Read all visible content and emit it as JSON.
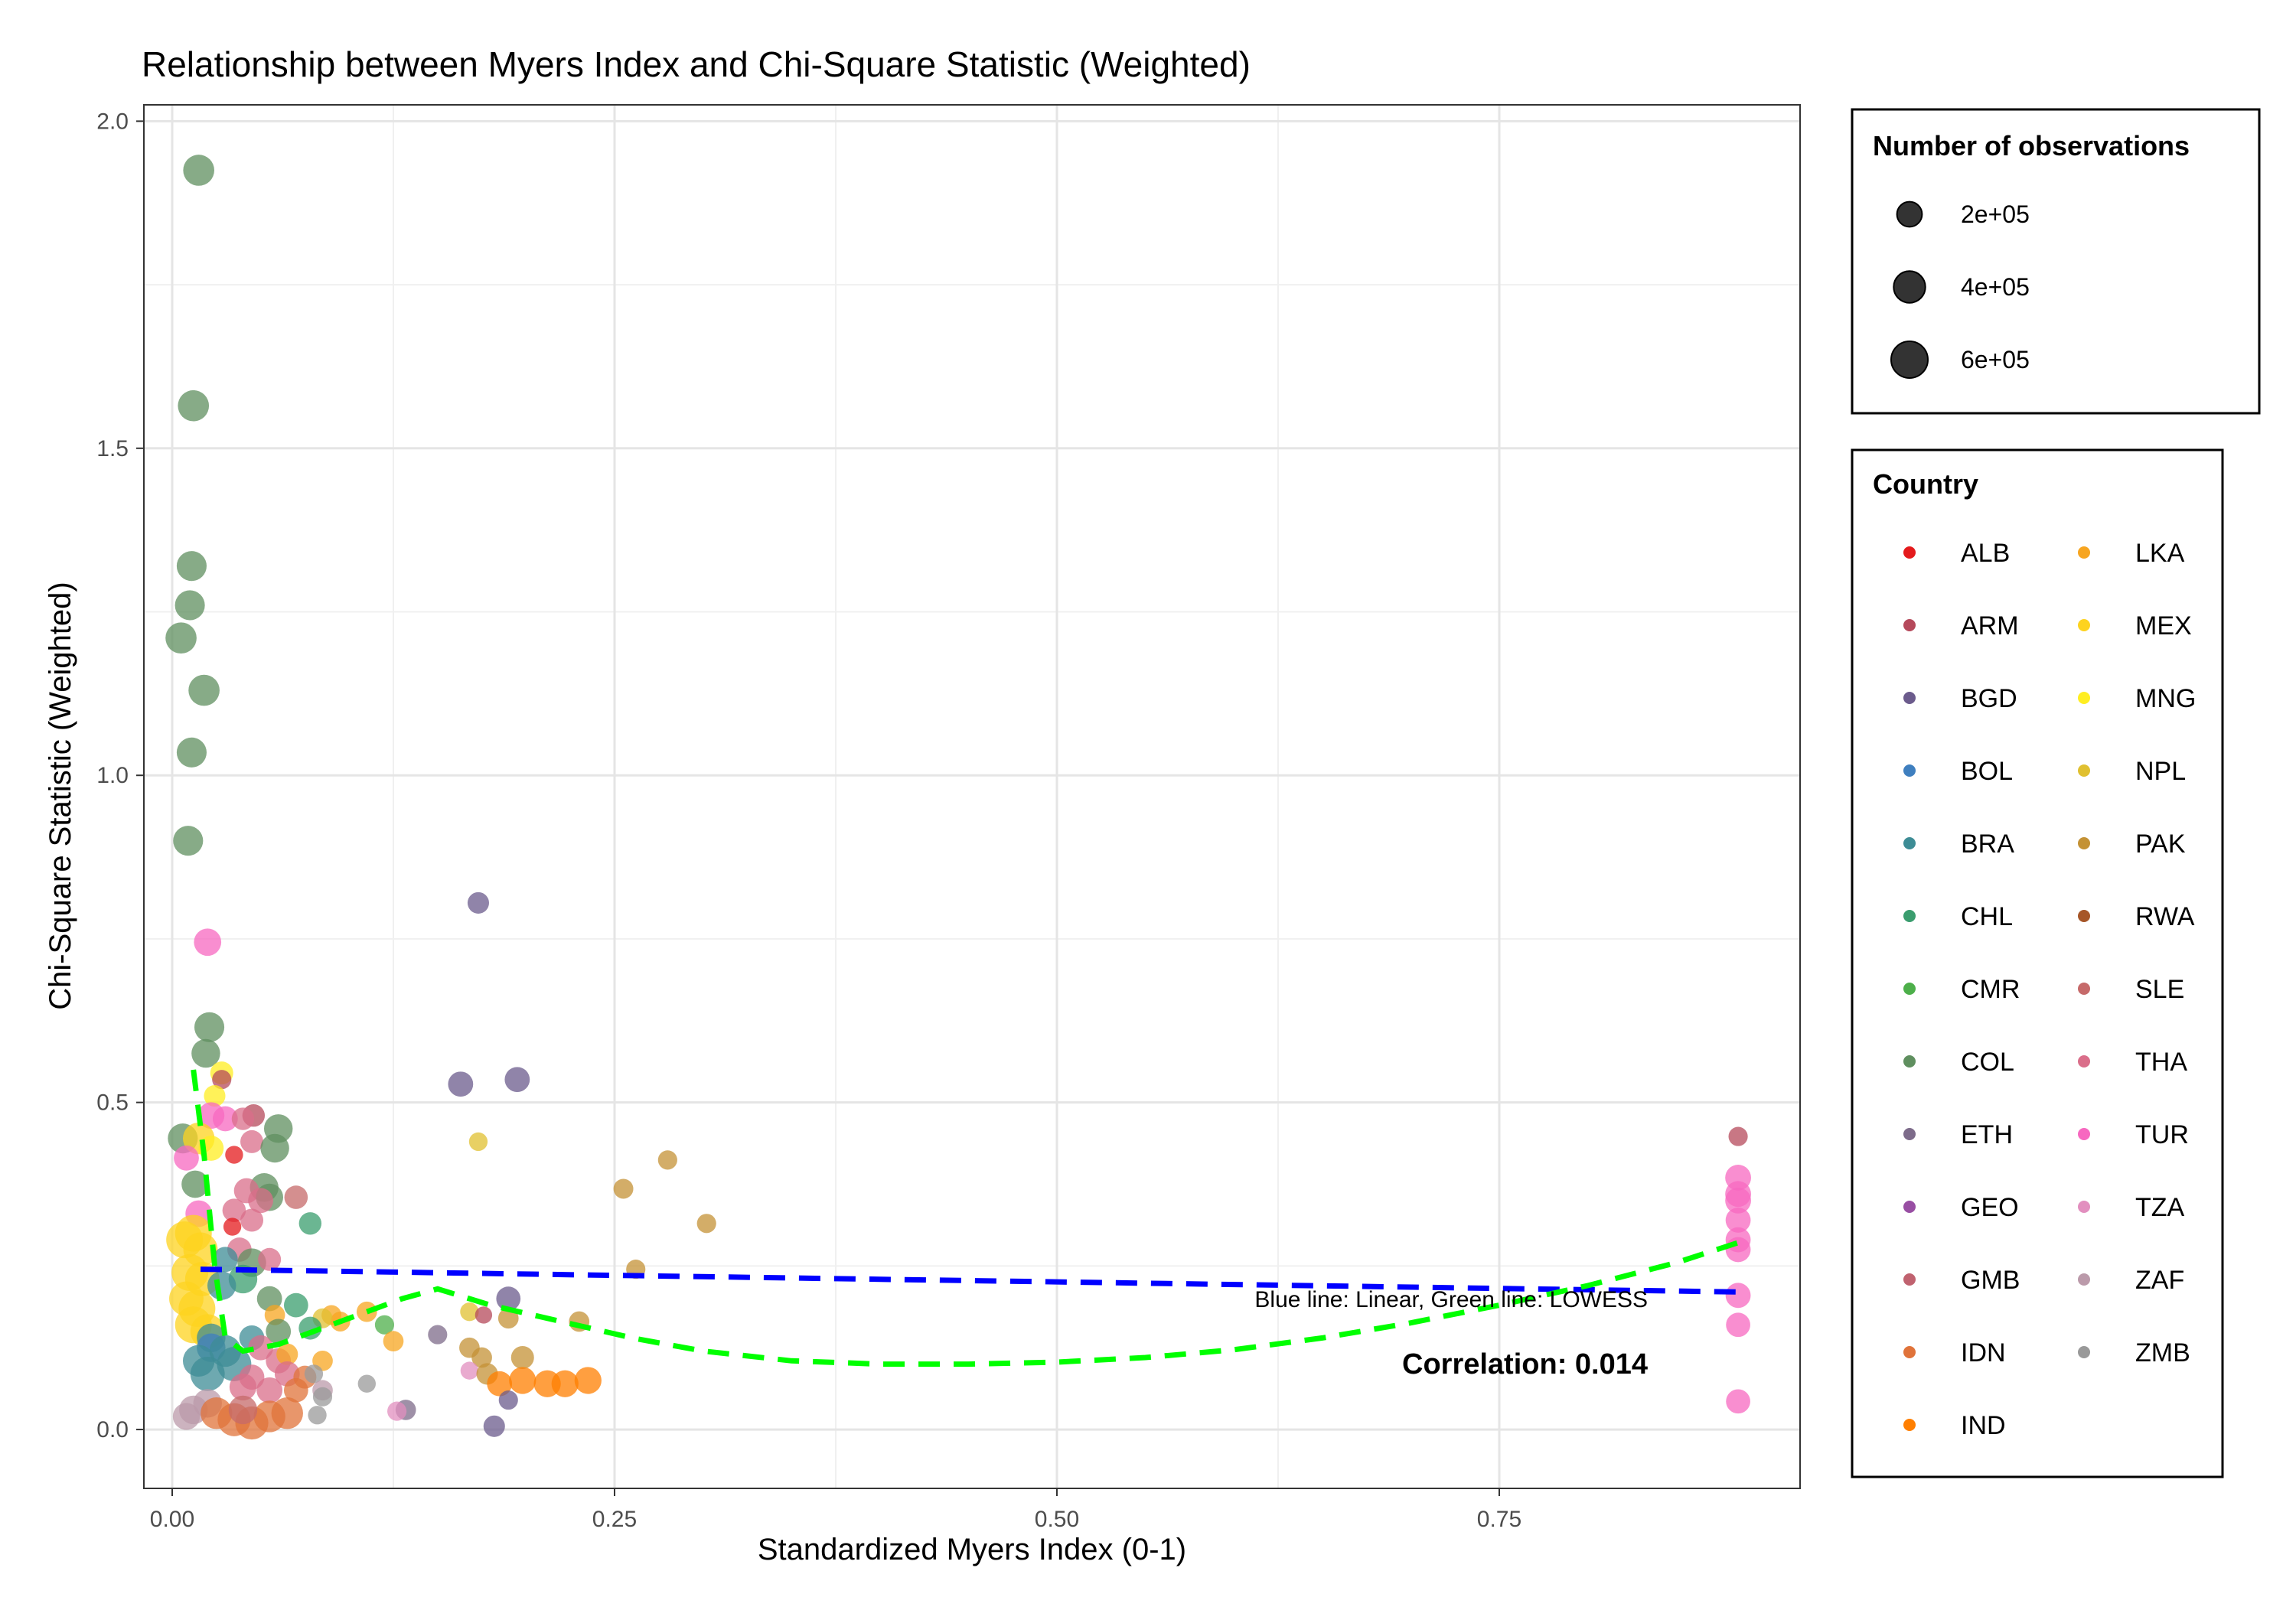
{
  "chart_data": {
    "type": "scatter",
    "title": "Relationship between Myers Index and Chi-Square Statistic (Weighted)",
    "xlabel": "Standardized Myers Index (0-1)",
    "ylabel": "Chi-Square Statistic (Weighted)",
    "xlim": [
      -0.016,
      0.92
    ],
    "ylim": [
      -0.09,
      2.025
    ],
    "x_ticks": [
      0.0,
      0.25,
      0.5,
      0.75
    ],
    "x_tick_labels": [
      "0.00",
      "0.25",
      "0.50",
      "0.75"
    ],
    "y_ticks": [
      0.0,
      0.5,
      1.0,
      1.5,
      2.0
    ],
    "y_tick_labels": [
      "0.0",
      "0.5",
      "1.0",
      "1.5",
      "2.0"
    ],
    "grid": true,
    "size_legend": {
      "title": "Number of observations",
      "entries": [
        {
          "label": "2e+05",
          "value": 200000
        },
        {
          "label": "4e+05",
          "value": 400000
        },
        {
          "label": "6e+05",
          "value": 600000
        }
      ]
    },
    "color_legend": {
      "title": "Country",
      "placement": "right",
      "entries": [
        {
          "code": "ALB",
          "color": "#e41a1c"
        },
        {
          "code": "ARM",
          "color": "#b5495b"
        },
        {
          "code": "BGD",
          "color": "#6b5b8c"
        },
        {
          "code": "BOL",
          "color": "#3f7fbf"
        },
        {
          "code": "BRA",
          "color": "#3d8c95"
        },
        {
          "code": "CHL",
          "color": "#3a9d6e"
        },
        {
          "code": "CMR",
          "color": "#4daf4a"
        },
        {
          "code": "COL",
          "color": "#5f8f5f"
        },
        {
          "code": "ETH",
          "color": "#7d6b8a"
        },
        {
          "code": "GEO",
          "color": "#984ea3"
        },
        {
          "code": "GMB",
          "color": "#c0626f"
        },
        {
          "code": "IDN",
          "color": "#e0733a"
        },
        {
          "code": "IND",
          "color": "#ff7f00"
        },
        {
          "code": "LKA",
          "color": "#f7a520"
        },
        {
          "code": "MEX",
          "color": "#fdd31f"
        },
        {
          "code": "MNG",
          "color": "#ffee22"
        },
        {
          "code": "NPL",
          "color": "#e0c030"
        },
        {
          "code": "PAK",
          "color": "#c49235"
        },
        {
          "code": "RWA",
          "color": "#a65628"
        },
        {
          "code": "SLE",
          "color": "#c66a6a"
        },
        {
          "code": "THA",
          "color": "#da6e8a"
        },
        {
          "code": "TUR",
          "color": "#f768c0"
        },
        {
          "code": "TZA",
          "color": "#e28fbf"
        },
        {
          "code": "ZAF",
          "color": "#bb9aaa"
        },
        {
          "code": "ZMB",
          "color": "#999999"
        }
      ]
    },
    "lines": [
      {
        "name": "Linear",
        "color": "#0000ff",
        "style": "dashed",
        "x": [
          0.016,
          0.89
        ],
        "y": [
          0.245,
          0.21
        ]
      },
      {
        "name": "LOWESS",
        "color": "#00ff00",
        "style": "dashed",
        "x": [
          0.012,
          0.018,
          0.024,
          0.03,
          0.04,
          0.06,
          0.08,
          0.1,
          0.13,
          0.15,
          0.18,
          0.22,
          0.26,
          0.3,
          0.35,
          0.4,
          0.45,
          0.5,
          0.55,
          0.6,
          0.65,
          0.7,
          0.75,
          0.8,
          0.85,
          0.89
        ],
        "y": [
          0.55,
          0.42,
          0.25,
          0.14,
          0.12,
          0.13,
          0.15,
          0.17,
          0.2,
          0.215,
          0.19,
          0.165,
          0.14,
          0.12,
          0.105,
          0.1,
          0.1,
          0.103,
          0.11,
          0.122,
          0.14,
          0.163,
          0.19,
          0.22,
          0.255,
          0.29
        ]
      }
    ],
    "annotations": {
      "lines_note": "Blue line: Linear, Green line: LOWESS",
      "correlation": "Correlation: 0.014"
    },
    "points": [
      {
        "c": "COL",
        "x": 0.015,
        "y": 1.925,
        "s": 380000
      },
      {
        "c": "COL",
        "x": 0.012,
        "y": 1.565,
        "s": 380000
      },
      {
        "c": "COL",
        "x": 0.011,
        "y": 1.32,
        "s": 340000
      },
      {
        "c": "COL",
        "x": 0.01,
        "y": 1.26,
        "s": 340000
      },
      {
        "c": "COL",
        "x": 0.005,
        "y": 1.21,
        "s": 380000
      },
      {
        "c": "COL",
        "x": 0.018,
        "y": 1.13,
        "s": 380000
      },
      {
        "c": "COL",
        "x": 0.011,
        "y": 1.035,
        "s": 340000
      },
      {
        "c": "COL",
        "x": 0.009,
        "y": 0.9,
        "s": 340000
      },
      {
        "c": "TUR",
        "x": 0.02,
        "y": 0.745,
        "s": 260000
      },
      {
        "c": "COL",
        "x": 0.021,
        "y": 0.615,
        "s": 340000
      },
      {
        "c": "COL",
        "x": 0.019,
        "y": 0.575,
        "s": 300000
      },
      {
        "c": "MNG",
        "x": 0.028,
        "y": 0.545,
        "s": 150000
      },
      {
        "c": "ARM",
        "x": 0.028,
        "y": 0.535,
        "s": 80000
      },
      {
        "c": "MNG",
        "x": 0.024,
        "y": 0.51,
        "s": 120000
      },
      {
        "c": "TUR",
        "x": 0.022,
        "y": 0.48,
        "s": 240000
      },
      {
        "c": "TUR",
        "x": 0.03,
        "y": 0.475,
        "s": 200000
      },
      {
        "c": "ARM",
        "x": 0.046,
        "y": 0.48,
        "s": 140000
      },
      {
        "c": "THA",
        "x": 0.04,
        "y": 0.475,
        "s": 140000
      },
      {
        "c": "COL",
        "x": 0.06,
        "y": 0.46,
        "s": 300000
      },
      {
        "c": "COL",
        "x": 0.006,
        "y": 0.445,
        "s": 340000
      },
      {
        "c": "MEX",
        "x": 0.015,
        "y": 0.445,
        "s": 400000
      },
      {
        "c": "MNG",
        "x": 0.022,
        "y": 0.43,
        "s": 200000
      },
      {
        "c": "THA",
        "x": 0.045,
        "y": 0.44,
        "s": 150000
      },
      {
        "c": "COL",
        "x": 0.058,
        "y": 0.43,
        "s": 300000
      },
      {
        "c": "ALB",
        "x": 0.035,
        "y": 0.42,
        "s": 60000
      },
      {
        "c": "TUR",
        "x": 0.008,
        "y": 0.415,
        "s": 200000
      },
      {
        "c": "COL",
        "x": 0.013,
        "y": 0.375,
        "s": 260000
      },
      {
        "c": "COL",
        "x": 0.052,
        "y": 0.37,
        "s": 300000
      },
      {
        "c": "THA",
        "x": 0.042,
        "y": 0.365,
        "s": 200000
      },
      {
        "c": "COL",
        "x": 0.055,
        "y": 0.355,
        "s": 260000
      },
      {
        "c": "THA",
        "x": 0.05,
        "y": 0.35,
        "s": 200000
      },
      {
        "c": "SLE",
        "x": 0.07,
        "y": 0.355,
        "s": 160000
      },
      {
        "c": "TUR",
        "x": 0.015,
        "y": 0.33,
        "s": 240000
      },
      {
        "c": "THA",
        "x": 0.035,
        "y": 0.335,
        "s": 160000
      },
      {
        "c": "THA",
        "x": 0.045,
        "y": 0.32,
        "s": 150000
      },
      {
        "c": "ALB",
        "x": 0.034,
        "y": 0.31,
        "s": 60000
      },
      {
        "c": "CHL",
        "x": 0.078,
        "y": 0.315,
        "s": 140000
      },
      {
        "c": "MEX",
        "x": 0.012,
        "y": 0.3,
        "s": 600000
      },
      {
        "c": "MEX",
        "x": 0.007,
        "y": 0.29,
        "s": 600000
      },
      {
        "c": "MEX",
        "x": 0.016,
        "y": 0.275,
        "s": 500000
      },
      {
        "c": "THA",
        "x": 0.038,
        "y": 0.275,
        "s": 180000
      },
      {
        "c": "BRA",
        "x": 0.03,
        "y": 0.26,
        "s": 200000
      },
      {
        "c": "COL",
        "x": 0.045,
        "y": 0.255,
        "s": 300000
      },
      {
        "c": "THA",
        "x": 0.055,
        "y": 0.26,
        "s": 150000
      },
      {
        "c": "MEX",
        "x": 0.01,
        "y": 0.24,
        "s": 600000
      },
      {
        "c": "MEX",
        "x": 0.017,
        "y": 0.23,
        "s": 500000
      },
      {
        "c": "CHL",
        "x": 0.04,
        "y": 0.23,
        "s": 300000
      },
      {
        "c": "BRA",
        "x": 0.028,
        "y": 0.22,
        "s": 300000
      },
      {
        "c": "MEX",
        "x": 0.008,
        "y": 0.2,
        "s": 500000
      },
      {
        "c": "MEX",
        "x": 0.014,
        "y": 0.185,
        "s": 600000
      },
      {
        "c": "COL",
        "x": 0.055,
        "y": 0.2,
        "s": 200000
      },
      {
        "c": "CHL",
        "x": 0.07,
        "y": 0.19,
        "s": 180000
      },
      {
        "c": "LKA",
        "x": 0.058,
        "y": 0.175,
        "s": 100000
      },
      {
        "c": "LKA",
        "x": 0.09,
        "y": 0.175,
        "s": 90000
      },
      {
        "c": "LKA",
        "x": 0.095,
        "y": 0.165,
        "s": 90000
      },
      {
        "c": "LKA",
        "x": 0.11,
        "y": 0.18,
        "s": 100000
      },
      {
        "c": "NPL",
        "x": 0.085,
        "y": 0.17,
        "s": 90000
      },
      {
        "c": "MEX",
        "x": 0.012,
        "y": 0.16,
        "s": 600000
      },
      {
        "c": "MEX",
        "x": 0.02,
        "y": 0.15,
        "s": 500000
      },
      {
        "c": "BRA",
        "x": 0.022,
        "y": 0.14,
        "s": 300000
      },
      {
        "c": "BRA",
        "x": 0.045,
        "y": 0.14,
        "s": 200000
      },
      {
        "c": "COL",
        "x": 0.06,
        "y": 0.15,
        "s": 200000
      },
      {
        "c": "CHL",
        "x": 0.078,
        "y": 0.155,
        "s": 150000
      },
      {
        "c": "CMR",
        "x": 0.12,
        "y": 0.16,
        "s": 80000
      },
      {
        "c": "LKA",
        "x": 0.125,
        "y": 0.135,
        "s": 100000
      },
      {
        "c": "BOL",
        "x": 0.022,
        "y": 0.125,
        "s": 300000
      },
      {
        "c": "BRA",
        "x": 0.03,
        "y": 0.12,
        "s": 400000
      },
      {
        "c": "THA",
        "x": 0.05,
        "y": 0.125,
        "s": 200000
      },
      {
        "c": "BRA",
        "x": 0.015,
        "y": 0.105,
        "s": 400000
      },
      {
        "c": "BRA",
        "x": 0.035,
        "y": 0.1,
        "s": 500000
      },
      {
        "c": "THA",
        "x": 0.06,
        "y": 0.105,
        "s": 200000
      },
      {
        "c": "LKA",
        "x": 0.065,
        "y": 0.115,
        "s": 120000
      },
      {
        "c": "LKA",
        "x": 0.085,
        "y": 0.105,
        "s": 100000
      },
      {
        "c": "BRA",
        "x": 0.02,
        "y": 0.085,
        "s": 500000
      },
      {
        "c": "THA",
        "x": 0.045,
        "y": 0.08,
        "s": 200000
      },
      {
        "c": "THA",
        "x": 0.065,
        "y": 0.085,
        "s": 200000
      },
      {
        "c": "IDN",
        "x": 0.075,
        "y": 0.08,
        "s": 150000
      },
      {
        "c": "ZMB",
        "x": 0.08,
        "y": 0.085,
        "s": 70000
      },
      {
        "c": "ZMB",
        "x": 0.11,
        "y": 0.07,
        "s": 60000
      },
      {
        "c": "THA",
        "x": 0.04,
        "y": 0.065,
        "s": 250000
      },
      {
        "c": "THA",
        "x": 0.055,
        "y": 0.06,
        "s": 220000
      },
      {
        "c": "IDN",
        "x": 0.07,
        "y": 0.06,
        "s": 180000
      },
      {
        "c": "ZAF",
        "x": 0.085,
        "y": 0.06,
        "s": 100000
      },
      {
        "c": "ZMB",
        "x": 0.085,
        "y": 0.05,
        "s": 80000
      },
      {
        "c": "ZAF",
        "x": 0.02,
        "y": 0.04,
        "s": 300000
      },
      {
        "c": "ZAF",
        "x": 0.012,
        "y": 0.03,
        "s": 300000
      },
      {
        "c": "ZAF",
        "x": 0.008,
        "y": 0.02,
        "s": 250000
      },
      {
        "c": "IDN",
        "x": 0.025,
        "y": 0.025,
        "s": 400000
      },
      {
        "c": "IDN",
        "x": 0.035,
        "y": 0.015,
        "s": 450000
      },
      {
        "c": "IDN",
        "x": 0.045,
        "y": 0.01,
        "s": 450000
      },
      {
        "c": "IDN",
        "x": 0.055,
        "y": 0.02,
        "s": 400000
      },
      {
        "c": "IDN",
        "x": 0.065,
        "y": 0.025,
        "s": 400000
      },
      {
        "c": "SLE",
        "x": 0.04,
        "y": 0.03,
        "s": 300000
      },
      {
        "c": "ZMB",
        "x": 0.082,
        "y": 0.022,
        "s": 70000
      },
      {
        "c": "BGD",
        "x": 0.173,
        "y": 0.805,
        "s": 120000
      },
      {
        "c": "BGD",
        "x": 0.163,
        "y": 0.528,
        "s": 200000
      },
      {
        "c": "BGD",
        "x": 0.195,
        "y": 0.535,
        "s": 200000
      },
      {
        "c": "NPL",
        "x": 0.173,
        "y": 0.44,
        "s": 70000
      },
      {
        "c": "PAK",
        "x": 0.255,
        "y": 0.368,
        "s": 90000
      },
      {
        "c": "PAK",
        "x": 0.28,
        "y": 0.412,
        "s": 80000
      },
      {
        "c": "PAK",
        "x": 0.302,
        "y": 0.315,
        "s": 80000
      },
      {
        "c": "PAK",
        "x": 0.262,
        "y": 0.245,
        "s": 80000
      },
      {
        "c": "BGD",
        "x": 0.19,
        "y": 0.2,
        "s": 180000
      },
      {
        "c": "NPL",
        "x": 0.168,
        "y": 0.18,
        "s": 70000
      },
      {
        "c": "ARM",
        "x": 0.176,
        "y": 0.175,
        "s": 50000
      },
      {
        "c": "PAK",
        "x": 0.19,
        "y": 0.17,
        "s": 100000
      },
      {
        "c": "PAK",
        "x": 0.23,
        "y": 0.165,
        "s": 100000
      },
      {
        "c": "ETH",
        "x": 0.15,
        "y": 0.145,
        "s": 80000
      },
      {
        "c": "PAK",
        "x": 0.168,
        "y": 0.125,
        "s": 100000
      },
      {
        "c": "PAK",
        "x": 0.175,
        "y": 0.11,
        "s": 100000
      },
      {
        "c": "PAK",
        "x": 0.198,
        "y": 0.11,
        "s": 150000
      },
      {
        "c": "TZA",
        "x": 0.168,
        "y": 0.09,
        "s": 60000
      },
      {
        "c": "PAK",
        "x": 0.178,
        "y": 0.085,
        "s": 120000
      },
      {
        "c": "IND",
        "x": 0.185,
        "y": 0.07,
        "s": 200000
      },
      {
        "c": "IND",
        "x": 0.198,
        "y": 0.075,
        "s": 250000
      },
      {
        "c": "IND",
        "x": 0.212,
        "y": 0.07,
        "s": 250000
      },
      {
        "c": "IND",
        "x": 0.222,
        "y": 0.07,
        "s": 250000
      },
      {
        "c": "IND",
        "x": 0.235,
        "y": 0.075,
        "s": 250000
      },
      {
        "c": "BGD",
        "x": 0.19,
        "y": 0.045,
        "s": 80000
      },
      {
        "c": "ETH",
        "x": 0.132,
        "y": 0.03,
        "s": 100000
      },
      {
        "c": "TZA",
        "x": 0.127,
        "y": 0.028,
        "s": 80000
      },
      {
        "c": "BGD",
        "x": 0.182,
        "y": 0.005,
        "s": 120000
      },
      {
        "c": "ARM",
        "x": 0.885,
        "y": 0.448,
        "s": 80000
      },
      {
        "c": "TUR",
        "x": 0.885,
        "y": 0.385,
        "s": 220000
      },
      {
        "c": "TUR",
        "x": 0.885,
        "y": 0.36,
        "s": 220000
      },
      {
        "c": "TUR",
        "x": 0.885,
        "y": 0.35,
        "s": 220000
      },
      {
        "c": "TUR",
        "x": 0.885,
        "y": 0.32,
        "s": 200000
      },
      {
        "c": "TUR",
        "x": 0.885,
        "y": 0.29,
        "s": 200000
      },
      {
        "c": "TUR",
        "x": 0.885,
        "y": 0.275,
        "s": 200000
      },
      {
        "c": "TUR",
        "x": 0.885,
        "y": 0.205,
        "s": 200000
      },
      {
        "c": "TUR",
        "x": 0.885,
        "y": 0.16,
        "s": 180000
      },
      {
        "c": "TUR",
        "x": 0.885,
        "y": 0.043,
        "s": 180000
      }
    ]
  }
}
